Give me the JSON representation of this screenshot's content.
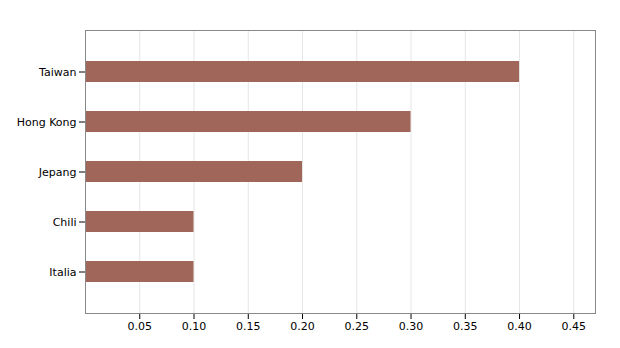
{
  "chart_data": {
    "type": "bar",
    "orientation": "horizontal",
    "categories": [
      "Italia",
      "Chili",
      "Jepang",
      "Hong Kong",
      "Taiwan"
    ],
    "values": [
      0.1,
      0.1,
      0.2,
      0.3,
      0.4
    ],
    "color": "#a0665a",
    "xlim": [
      0.0,
      0.47
    ],
    "xticks": [
      0.05,
      {
        "value": 0.1,
        "label": "0.10"
      },
      0.15,
      {
        "value": 0.2,
        "label": "0.20"
      },
      0.25,
      {
        "value": 0.3,
        "label": "0.30"
      },
      0.35,
      {
        "value": 0.4,
        "label": "0.40"
      },
      0.45
    ],
    "grid": true
  }
}
